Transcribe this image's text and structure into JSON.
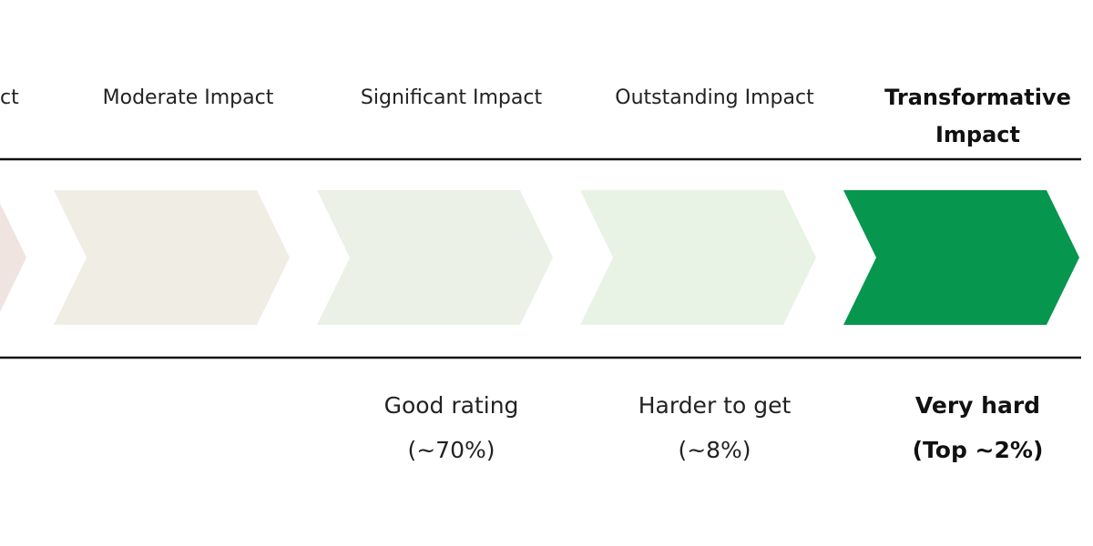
{
  "stages": [
    {
      "label": [
        "ct"
      ],
      "color": "#efe4e0"
    },
    {
      "label": [
        "Moderate Impact"
      ],
      "color": "#efede4"
    },
    {
      "label": [
        "Significant Impact"
      ],
      "color": "#ebf1e6",
      "notes": [
        "Good rating",
        "(~70%)"
      ]
    },
    {
      "label": [
        "Outstanding Impact"
      ],
      "color": "#e8f3e6",
      "notes": [
        "Harder to get",
        "(~8%)"
      ]
    },
    {
      "label": [
        "Transformative",
        "Impact"
      ],
      "color": "#07964e",
      "highlight": true,
      "notes": [
        "Very hard",
        "(Top ~2%)"
      ]
    }
  ]
}
